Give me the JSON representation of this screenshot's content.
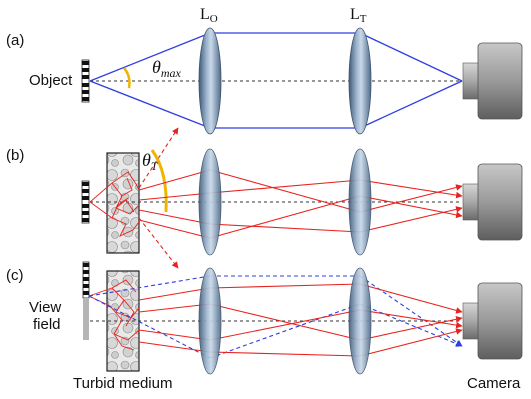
{
  "panels": [
    {
      "label": "(a)"
    },
    {
      "label": "(b)"
    },
    {
      "label": "(c)"
    }
  ],
  "lenses": {
    "objective": {
      "main": "L",
      "sub": "O"
    },
    "tube": {
      "main": "L",
      "sub": "T"
    }
  },
  "labels": {
    "object": "Object",
    "view_field_line1": "View",
    "view_field_line2": "field",
    "turbid_medium": "Turbid medium",
    "camera": "Camera"
  },
  "angles": {
    "theta_max": {
      "symbol": "θ",
      "sub": "max"
    },
    "theta_T": {
      "symbol": "θ",
      "sub": "T"
    }
  },
  "colors": {
    "ray_blue": "#2f3fe0",
    "ray_red": "#e8231f",
    "angle_arc": "#f0b400",
    "lens": "#7d98b6",
    "camera": "#8a8a8a",
    "axis": "#333333"
  }
}
